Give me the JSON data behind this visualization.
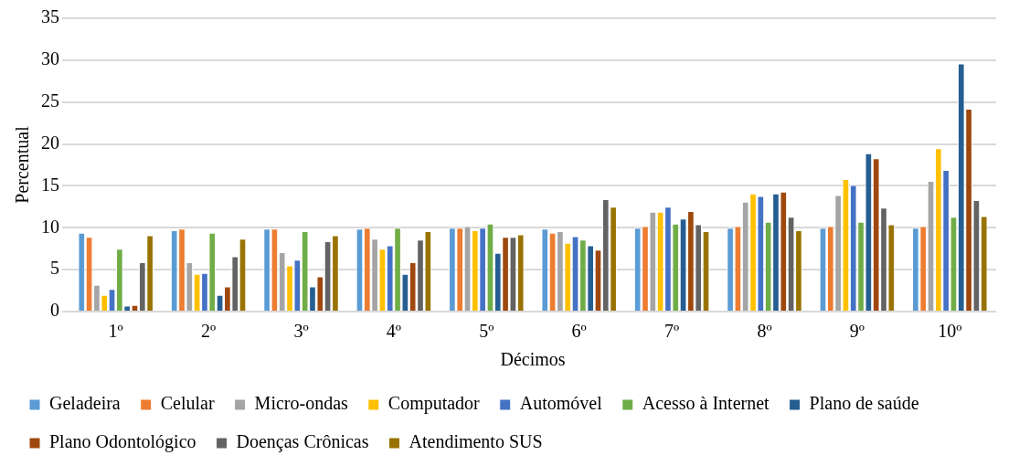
{
  "chart_data": {
    "type": "bar",
    "xlabel": "Décimos",
    "ylabel": "Percentual",
    "categories": [
      "1º",
      "2º",
      "3º",
      "4º",
      "5º",
      "6º",
      "7º",
      "8º",
      "9º",
      "10º"
    ],
    "ylim": [
      0,
      35
    ],
    "yticks": [
      0,
      5,
      10,
      15,
      20,
      25,
      30,
      35
    ],
    "grid": "y",
    "legend": "bottom",
    "series": [
      {
        "name": "Geladeira",
        "color": "#5b9bd5",
        "values": [
          9.4,
          9.7,
          9.9,
          9.9,
          10.0,
          9.9,
          10.0,
          10.0,
          10.0,
          10.0
        ]
      },
      {
        "name": "Celular",
        "color": "#ed7d31",
        "values": [
          8.9,
          9.9,
          9.9,
          10.0,
          10.0,
          9.4,
          10.2,
          10.2,
          10.2,
          10.2
        ]
      },
      {
        "name": "Micro-ondas",
        "color": "#a5a5a5",
        "values": [
          3.2,
          5.9,
          7.1,
          8.7,
          10.2,
          9.6,
          11.9,
          13.1,
          13.9,
          15.6
        ]
      },
      {
        "name": "Computador",
        "color": "#ffc000",
        "values": [
          2.0,
          4.5,
          5.5,
          7.5,
          9.7,
          8.2,
          11.9,
          14.1,
          15.8,
          19.5
        ]
      },
      {
        "name": "Automóvel",
        "color": "#4472c4",
        "values": [
          2.7,
          4.6,
          6.2,
          7.9,
          10.0,
          9.0,
          12.5,
          13.8,
          15.1,
          16.9
        ]
      },
      {
        "name": "Acesso à Internet",
        "color": "#70ad47",
        "values": [
          7.5,
          9.4,
          9.6,
          10.0,
          10.5,
          8.6,
          10.5,
          10.7,
          10.7,
          11.3
        ]
      },
      {
        "name": "Plano de saúde",
        "color": "#255e91",
        "values": [
          0.7,
          2.0,
          3.0,
          4.5,
          7.0,
          7.9,
          11.1,
          14.1,
          18.9,
          29.6
        ]
      },
      {
        "name": "Plano Odontológico",
        "color": "#9e480e",
        "values": [
          0.8,
          3.0,
          4.2,
          5.9,
          8.9,
          7.4,
          12.0,
          14.3,
          18.3,
          24.2
        ]
      },
      {
        "name": "Doenças Crônicas",
        "color": "#636363",
        "values": [
          5.9,
          6.6,
          8.4,
          8.6,
          8.9,
          13.4,
          10.4,
          11.3,
          12.4,
          13.3
        ]
      },
      {
        "name": "Atendimento SUS",
        "color": "#997300",
        "values": [
          9.1,
          8.7,
          9.1,
          9.6,
          9.2,
          12.5,
          9.6,
          9.7,
          10.4,
          11.4
        ]
      }
    ]
  }
}
